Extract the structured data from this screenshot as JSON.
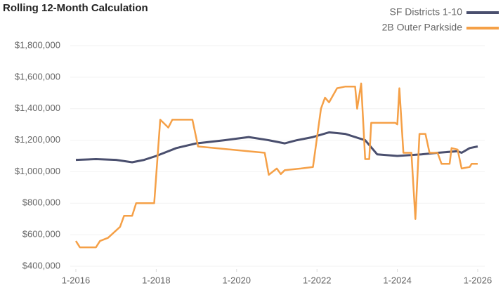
{
  "chart_data": {
    "type": "line",
    "title": "Rolling 12-Month Calculation",
    "xlim": [
      2016,
      2026
    ],
    "xticks": [
      {
        "value": 2016,
        "label": "1-2016"
      },
      {
        "value": 2018,
        "label": "1-2018"
      },
      {
        "value": 2020,
        "label": "1-2020"
      },
      {
        "value": 2022,
        "label": "1-2022"
      },
      {
        "value": 2024,
        "label": "1-2024"
      },
      {
        "value": 2026,
        "label": "1-2026"
      }
    ],
    "ylim": [
      400000,
      1800000
    ],
    "yticks": [
      {
        "value": 400000,
        "label": "$400,000"
      },
      {
        "value": 600000,
        "label": "$600,000"
      },
      {
        "value": 800000,
        "label": "$800,000"
      },
      {
        "value": 1000000,
        "label": "$1,000,000"
      },
      {
        "value": 1200000,
        "label": "$1,200,000"
      },
      {
        "value": 1400000,
        "label": "$1,400,000"
      },
      {
        "value": 1600000,
        "label": "$1,600,000"
      },
      {
        "value": 1800000,
        "label": "$1,800,000"
      }
    ],
    "grid": true,
    "legend": "top-right",
    "series": [
      {
        "name": "SF Districts 1-10",
        "color": "#4a4f6e",
        "x": [
          2016,
          2016.5,
          2017,
          2017.4,
          2017.7,
          2018,
          2018.5,
          2019,
          2019.7,
          2020.3,
          2020.8,
          2021.2,
          2021.5,
          2021.9,
          2022.3,
          2022.7,
          2023.2,
          2023.5,
          2024,
          2024.6,
          2025,
          2025.5,
          2025.6,
          2025.8,
          2026
        ],
        "values": [
          1075000,
          1080000,
          1075000,
          1060000,
          1075000,
          1100000,
          1150000,
          1180000,
          1200000,
          1220000,
          1200000,
          1180000,
          1200000,
          1220000,
          1250000,
          1240000,
          1200000,
          1110000,
          1100000,
          1110000,
          1120000,
          1130000,
          1120000,
          1150000,
          1160000
        ]
      },
      {
        "name": "2B Outer Parkside",
        "color": "#f5a047",
        "x": [
          2016,
          2016.1,
          2016.5,
          2016.6,
          2016.8,
          2017.1,
          2017.2,
          2017.4,
          2017.5,
          2017.95,
          2018.1,
          2018.3,
          2018.4,
          2018.9,
          2019.04,
          2020.7,
          2020.8,
          2021.0,
          2021.1,
          2021.2,
          2021.6,
          2021.9,
          2022.1,
          2022.2,
          2022.3,
          2022.5,
          2022.7,
          2022.95,
          2023.0,
          2023.1,
          2023.2,
          2023.3,
          2023.35,
          2023.95,
          2024.0,
          2024.05,
          2024.15,
          2024.35,
          2024.45,
          2024.55,
          2024.7,
          2024.8,
          2025.0,
          2025.1,
          2025.3,
          2025.35,
          2025.5,
          2025.6,
          2025.8,
          2025.85,
          2026
        ],
        "values": [
          560000,
          520000,
          520000,
          560000,
          580000,
          650000,
          720000,
          720000,
          800000,
          800000,
          1330000,
          1280000,
          1330000,
          1330000,
          1160000,
          1120000,
          980000,
          1020000,
          985000,
          1010000,
          1020000,
          1030000,
          1400000,
          1470000,
          1440000,
          1530000,
          1540000,
          1540000,
          1400000,
          1560000,
          1080000,
          1080000,
          1310000,
          1310000,
          1300000,
          1530000,
          1120000,
          1120000,
          700000,
          1240000,
          1240000,
          1120000,
          1120000,
          1050000,
          1050000,
          1150000,
          1140000,
          1020000,
          1030000,
          1050000,
          1050000
        ]
      }
    ]
  }
}
